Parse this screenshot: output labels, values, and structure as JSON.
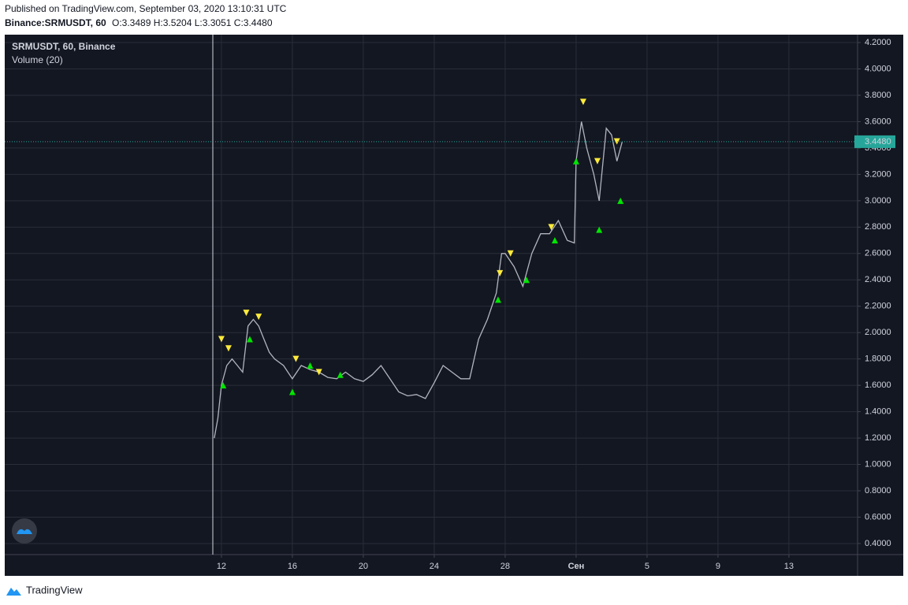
{
  "header": {
    "published": "Published on TradingView.com, September 03, 2020 13:10:31 UTC",
    "symbol": "Binance:SRMUSDT, 60",
    "ohlc": "O:3.3489 H:3.5204 L:3.3051 C:3.4480"
  },
  "footer": {
    "brand": "TradingView"
  },
  "chart_data": {
    "type": "line",
    "title": "SRMUSDT, 60, Binance",
    "subtitle": "Volume (20)",
    "x": [
      11.6,
      11.8,
      12.0,
      12.3,
      12.6,
      12.9,
      13.2,
      13.5,
      13.8,
      14.1,
      14.4,
      14.7,
      15.0,
      15.5,
      16.0,
      16.5,
      17.0,
      17.5,
      18.0,
      18.5,
      19.0,
      19.5,
      20.0,
      20.5,
      21.0,
      21.5,
      22.0,
      22.5,
      23.0,
      23.5,
      24.0,
      24.5,
      25.0,
      25.5,
      26.0,
      26.5,
      27.0,
      27.5,
      27.8,
      28.0,
      28.5,
      29.0,
      29.5,
      30.0,
      30.5,
      31.0,
      31.5,
      31.9,
      32.0,
      32.3,
      32.6,
      33.0,
      33.3,
      33.7,
      34.0,
      34.3,
      34.6
    ],
    "values": [
      1.2,
      1.35,
      1.6,
      1.75,
      1.8,
      1.75,
      1.7,
      2.05,
      2.1,
      2.05,
      1.95,
      1.85,
      1.8,
      1.75,
      1.65,
      1.75,
      1.72,
      1.7,
      1.66,
      1.65,
      1.7,
      1.65,
      1.63,
      1.68,
      1.75,
      1.65,
      1.55,
      1.52,
      1.53,
      1.5,
      1.62,
      1.75,
      1.7,
      1.65,
      1.65,
      1.95,
      2.1,
      2.3,
      2.6,
      2.6,
      2.5,
      2.35,
      2.6,
      2.75,
      2.75,
      2.85,
      2.7,
      2.68,
      3.3,
      3.6,
      3.4,
      3.2,
      3.0,
      3.55,
      3.5,
      3.3,
      3.448
    ],
    "color": "#b2b5be",
    "signals": [
      {
        "color": "#ffeb3b",
        "shape": "down",
        "x": [
          12.0,
          12.4,
          13.4,
          14.1,
          16.2,
          17.5,
          27.7,
          28.3,
          30.6,
          32.4,
          33.2,
          34.3
        ],
        "values": [
          1.95,
          1.88,
          2.15,
          2.12,
          1.8,
          1.7,
          2.45,
          2.6,
          2.8,
          3.75,
          3.3,
          3.45
        ]
      },
      {
        "color": "#00e600",
        "shape": "up",
        "x": [
          12.1,
          13.6,
          16.0,
          17.0,
          18.7,
          27.6,
          29.2,
          30.8,
          32.0,
          33.3,
          34.5
        ],
        "values": [
          1.6,
          1.95,
          1.55,
          1.75,
          1.68,
          2.25,
          2.4,
          2.7,
          3.3,
          2.78,
          3.0
        ]
      }
    ],
    "last_value": {
      "value": 3.448,
      "label": "3.4480"
    },
    "xlim": [
      -0.22,
      47.87
    ],
    "xticks": [
      12,
      16,
      20,
      24,
      28,
      {
        "value": 32,
        "label": "Сен"
      },
      {
        "value": 36,
        "label": "5"
      },
      {
        "value": 40,
        "label": "9"
      },
      {
        "value": 44,
        "label": "13"
      }
    ],
    "ylim": [
      0.316,
      4.26
    ],
    "yticks": [
      {
        "value": 0.4,
        "label": "0.4000"
      },
      {
        "value": 0.6,
        "label": "0.6000"
      },
      {
        "value": 0.8,
        "label": "0.8000"
      },
      {
        "value": 1.0,
        "label": "1.0000"
      },
      {
        "value": 1.2,
        "label": "1.2000"
      },
      {
        "value": 1.4,
        "label": "1.4000"
      },
      {
        "value": 1.6,
        "label": "1.6000"
      },
      {
        "value": 1.8,
        "label": "1.8000"
      },
      {
        "value": 2.0,
        "label": "2.0000"
      },
      {
        "value": 2.2,
        "label": "2.2000"
      },
      {
        "value": 2.4,
        "label": "2.4000"
      },
      {
        "value": 2.6,
        "label": "2.6000"
      },
      {
        "value": 2.8,
        "label": "2.8000"
      },
      {
        "value": 3.0,
        "label": "3.0000"
      },
      {
        "value": 3.2,
        "label": "3.2000"
      },
      {
        "value": 3.4,
        "label": "3.4000"
      },
      {
        "value": 3.6,
        "label": "3.6000"
      },
      {
        "value": 3.8,
        "label": "3.8000"
      },
      {
        "value": 4.0,
        "label": "4.0000"
      },
      {
        "value": 4.2,
        "label": "4.2000"
      }
    ],
    "grid": true
  }
}
